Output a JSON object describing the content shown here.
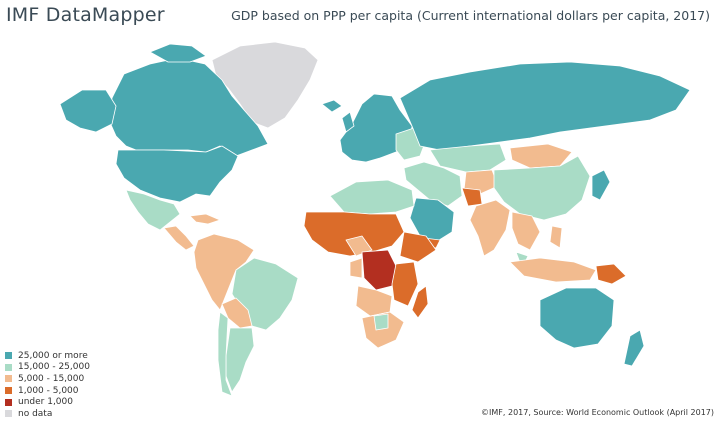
{
  "header": {
    "app_title": "IMF DataMapper",
    "map_title": "GDP based on PPP per capita (Current international dollars per capita, 2017)"
  },
  "legend": {
    "items": [
      {
        "label": "25,000 or more",
        "color": "#4aa8b0"
      },
      {
        "label": "15,000 - 25,000",
        "color": "#a9dcc6"
      },
      {
        "label": "5,000 - 15,000",
        "color": "#f2bb8f"
      },
      {
        "label": "1,000 - 5,000",
        "color": "#db6c2a"
      },
      {
        "label": "under 1,000",
        "color": "#b32f20"
      },
      {
        "label": "no data",
        "color": "#d9d9dc"
      }
    ]
  },
  "footer": {
    "source": "©IMF, 2017, Source: World Economic Outlook (April 2017)"
  }
}
